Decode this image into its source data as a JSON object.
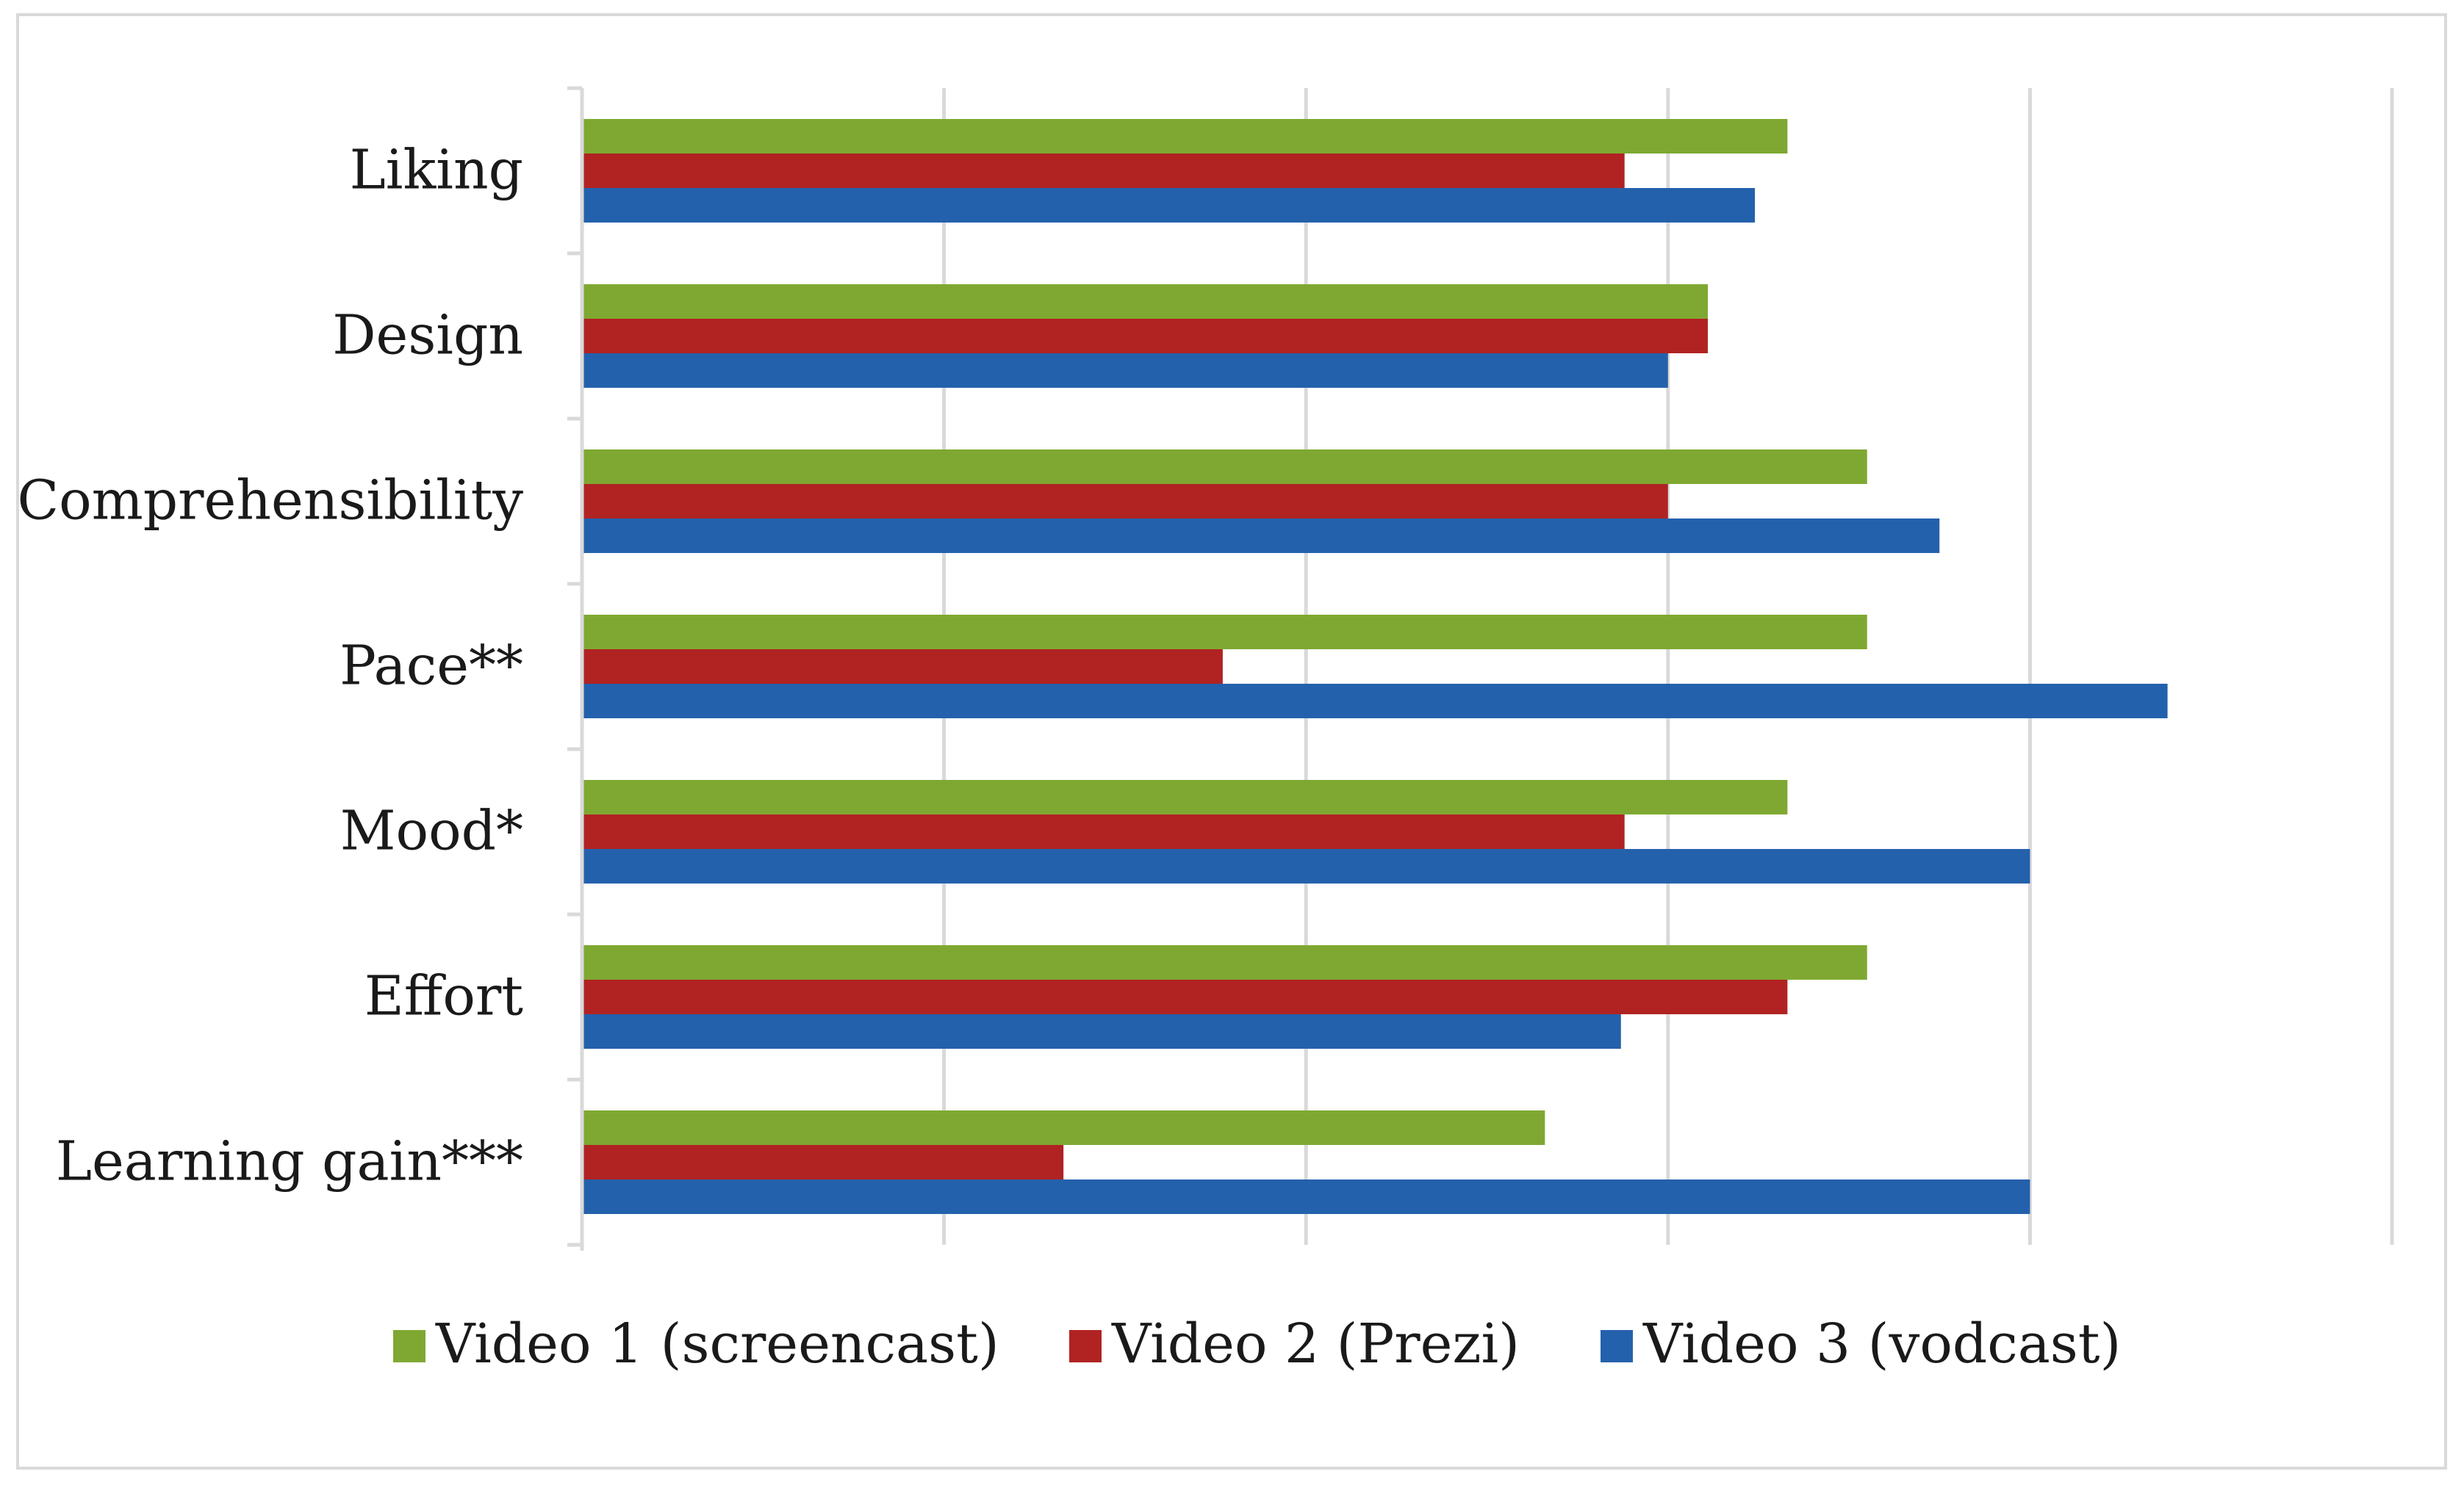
{
  "chart_data": {
    "type": "bar",
    "orientation": "horizontal",
    "title": "",
    "xlabel": "",
    "ylabel": "",
    "categories": [
      "Liking",
      "Design",
      "Comprehensibility",
      "Pace**",
      "Mood*",
      "Effort",
      "Learning gain***"
    ],
    "series": [
      {
        "name": "Video 1 (screencast)",
        "color": "#7fa832",
        "values": [
          3.33,
          3.11,
          3.55,
          3.55,
          3.33,
          3.55,
          2.66
        ]
      },
      {
        "name": "Video 2 (Prezi)",
        "color": "#b02322",
        "values": [
          2.88,
          3.11,
          3.0,
          1.77,
          2.88,
          3.33,
          1.33
        ]
      },
      {
        "name": "Video 3 (vodcast)",
        "color": "#2461ac",
        "values": [
          3.24,
          3.0,
          3.75,
          4.38,
          4.0,
          2.87,
          4.0
        ]
      }
    ],
    "xlim": [
      0,
      5
    ],
    "gridlines": "vertical",
    "tick_labels_shown": false,
    "legend_position": "bottom",
    "grid_color": "#d9d9d9"
  }
}
